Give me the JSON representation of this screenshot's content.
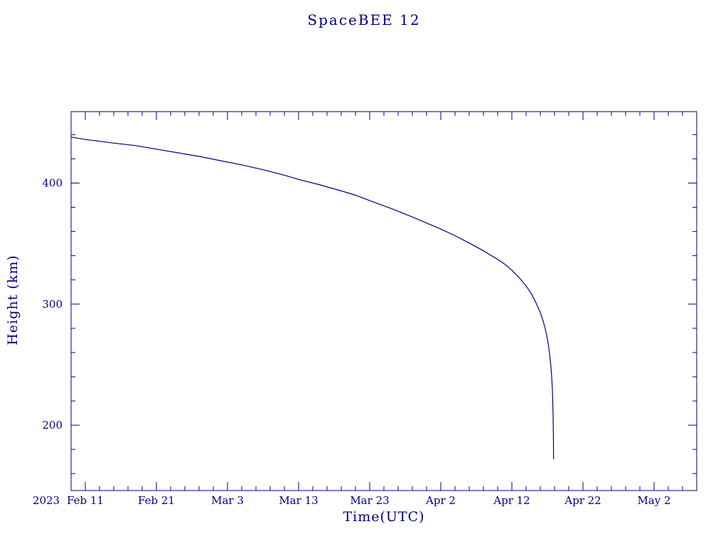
{
  "colors": {
    "accent": "#000080",
    "background": "#ffffff"
  },
  "chart_data": {
    "type": "line",
    "title": "SpaceBEE 12",
    "xlabel": "Time(UTC)",
    "ylabel": "Height (km)",
    "year_label": "2023",
    "x_unit": "days since 2023 Feb 9 00:00 UTC",
    "xlim": [
      0,
      88
    ],
    "ylim": [
      146,
      459
    ],
    "x_ticks": [
      {
        "pos": 2,
        "label": "Feb 11"
      },
      {
        "pos": 12,
        "label": "Feb 21"
      },
      {
        "pos": 22,
        "label": "Mar 3"
      },
      {
        "pos": 32,
        "label": "Mar 13"
      },
      {
        "pos": 42,
        "label": "Mar 23"
      },
      {
        "pos": 52,
        "label": "Apr 2"
      },
      {
        "pos": 62,
        "label": "Apr 12"
      },
      {
        "pos": 72,
        "label": "Apr 22"
      },
      {
        "pos": 82,
        "label": "May 2"
      }
    ],
    "y_ticks": [
      {
        "pos": 200,
        "label": "200"
      },
      {
        "pos": 300,
        "label": "300"
      },
      {
        "pos": 400,
        "label": "400"
      }
    ],
    "x_minor_step": 2,
    "y_minor_step": 20,
    "grid": false,
    "legend": "none",
    "line_color": "#000080",
    "series": [
      {
        "name": "Height (km)",
        "points": [
          [
            0,
            438
          ],
          [
            2,
            436
          ],
          [
            4,
            434.5
          ],
          [
            6,
            433
          ],
          [
            9,
            431
          ],
          [
            12,
            428
          ],
          [
            15,
            425
          ],
          [
            18,
            422
          ],
          [
            21,
            418.5
          ],
          [
            24,
            415
          ],
          [
            27,
            411
          ],
          [
            30,
            406.5
          ],
          [
            32,
            403
          ],
          [
            35,
            398.5
          ],
          [
            38,
            393.5
          ],
          [
            40,
            390
          ],
          [
            42,
            385.5
          ],
          [
            45,
            379
          ],
          [
            48,
            372
          ],
          [
            50,
            367
          ],
          [
            52,
            362
          ],
          [
            54,
            356.5
          ],
          [
            56,
            350.5
          ],
          [
            58,
            344
          ],
          [
            60,
            337
          ],
          [
            61,
            333
          ],
          [
            62,
            328
          ],
          [
            63,
            322
          ],
          [
            64,
            315
          ],
          [
            64.8,
            308
          ],
          [
            65.4,
            301
          ],
          [
            66,
            293
          ],
          [
            66.4,
            286
          ],
          [
            66.8,
            277
          ],
          [
            67.1,
            268
          ],
          [
            67.3,
            259
          ],
          [
            67.5,
            248
          ],
          [
            67.6,
            240
          ],
          [
            67.7,
            229
          ],
          [
            67.75,
            220
          ],
          [
            67.8,
            208
          ],
          [
            67.83,
            196
          ],
          [
            67.85,
            185
          ],
          [
            67.86,
            172
          ]
        ]
      }
    ]
  }
}
